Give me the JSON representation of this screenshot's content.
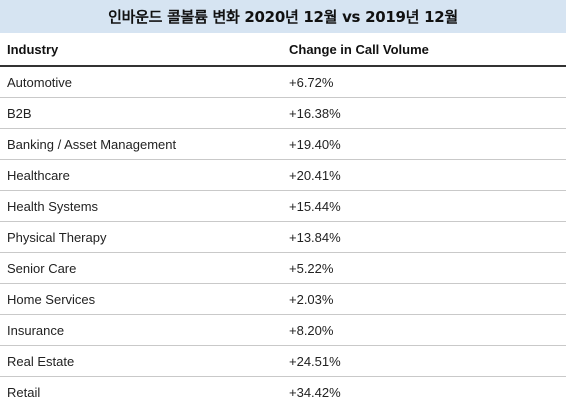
{
  "title": "인바운드 콜볼륨 변화 2020년 12월 vs 2019년 12월",
  "table": {
    "headers": [
      "Industry",
      "Change in Call Volume"
    ],
    "rows": [
      {
        "industry": "Automotive",
        "change": "+6.72%"
      },
      {
        "industry": "B2B",
        "change": "+16.38%"
      },
      {
        "industry": "Banking / Asset Management",
        "change": "+19.40%"
      },
      {
        "industry": "Healthcare",
        "change": "+20.41%"
      },
      {
        "industry": "Health Systems",
        "change": "+15.44%"
      },
      {
        "industry": "Physical Therapy",
        "change": "+13.84%"
      },
      {
        "industry": "Senior Care",
        "change": "+5.22%"
      },
      {
        "industry": "Home Services",
        "change": "+2.03%"
      },
      {
        "industry": "Insurance",
        "change": "+8.20%"
      },
      {
        "industry": "Real Estate",
        "change": "+24.51%"
      },
      {
        "industry": "Retail",
        "change": "+34.42%"
      }
    ]
  },
  "chart_data": {
    "type": "table",
    "title": "인바운드 콜볼륨 변화 2020년 12월 vs 2019년 12월",
    "columns": [
      "Industry",
      "Change in Call Volume"
    ],
    "categories": [
      "Automotive",
      "B2B",
      "Banking / Asset Management",
      "Healthcare",
      "Health Systems",
      "Physical Therapy",
      "Senior Care",
      "Home Services",
      "Insurance",
      "Real Estate",
      "Retail"
    ],
    "values": [
      6.72,
      16.38,
      19.4,
      20.41,
      15.44,
      13.84,
      5.22,
      2.03,
      8.2,
      24.51,
      34.42
    ]
  }
}
